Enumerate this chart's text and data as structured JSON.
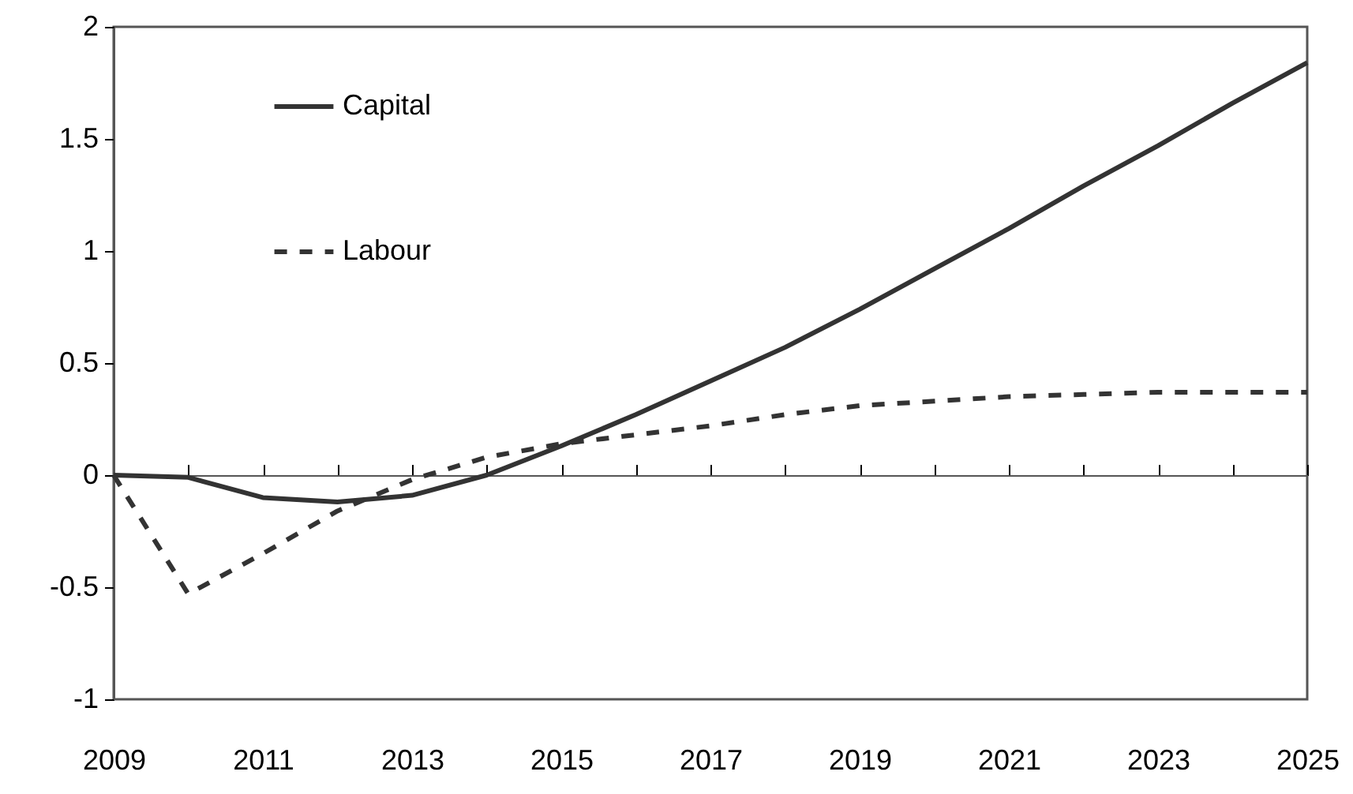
{
  "chart_data": {
    "type": "line",
    "x": [
      2009,
      2010,
      2011,
      2012,
      2013,
      2014,
      2015,
      2016,
      2017,
      2018,
      2019,
      2020,
      2021,
      2022,
      2023,
      2024,
      2025
    ],
    "series": [
      {
        "name": "Capital",
        "color": "#333333",
        "line_style": "solid",
        "values": [
          0,
          -0.01,
          -0.1,
          -0.12,
          -0.09,
          0,
          0.13,
          0.27,
          0.42,
          0.57,
          0.74,
          0.92,
          1.1,
          1.29,
          1.47,
          1.66,
          1.84
        ]
      },
      {
        "name": "Labour",
        "color": "#333333",
        "line_style": "dashed",
        "values": [
          0,
          -0.53,
          -0.35,
          -0.16,
          -0.02,
          0.08,
          0.14,
          0.18,
          0.22,
          0.27,
          0.31,
          0.33,
          0.35,
          0.36,
          0.37,
          0.37,
          0.37
        ]
      }
    ],
    "xlim": [
      2009,
      2025
    ],
    "xticks": [
      2009,
      {
        "value": 2010,
        "label": null
      },
      2011,
      {
        "value": 2012,
        "label": null
      },
      2013,
      {
        "value": 2014,
        "label": null
      },
      2015,
      {
        "value": 2016,
        "label": null
      },
      2017,
      {
        "value": 2018,
        "label": null
      },
      2019,
      {
        "value": 2020,
        "label": null
      },
      2021,
      {
        "value": 2022,
        "label": null
      },
      2023,
      {
        "value": 2024,
        "label": null
      },
      2025
    ],
    "ylim": [
      -1,
      2
    ],
    "yticks": [
      -1,
      -0.5,
      0,
      0.5,
      1,
      1.5,
      2
    ],
    "legend": "top left",
    "marker": "none"
  }
}
